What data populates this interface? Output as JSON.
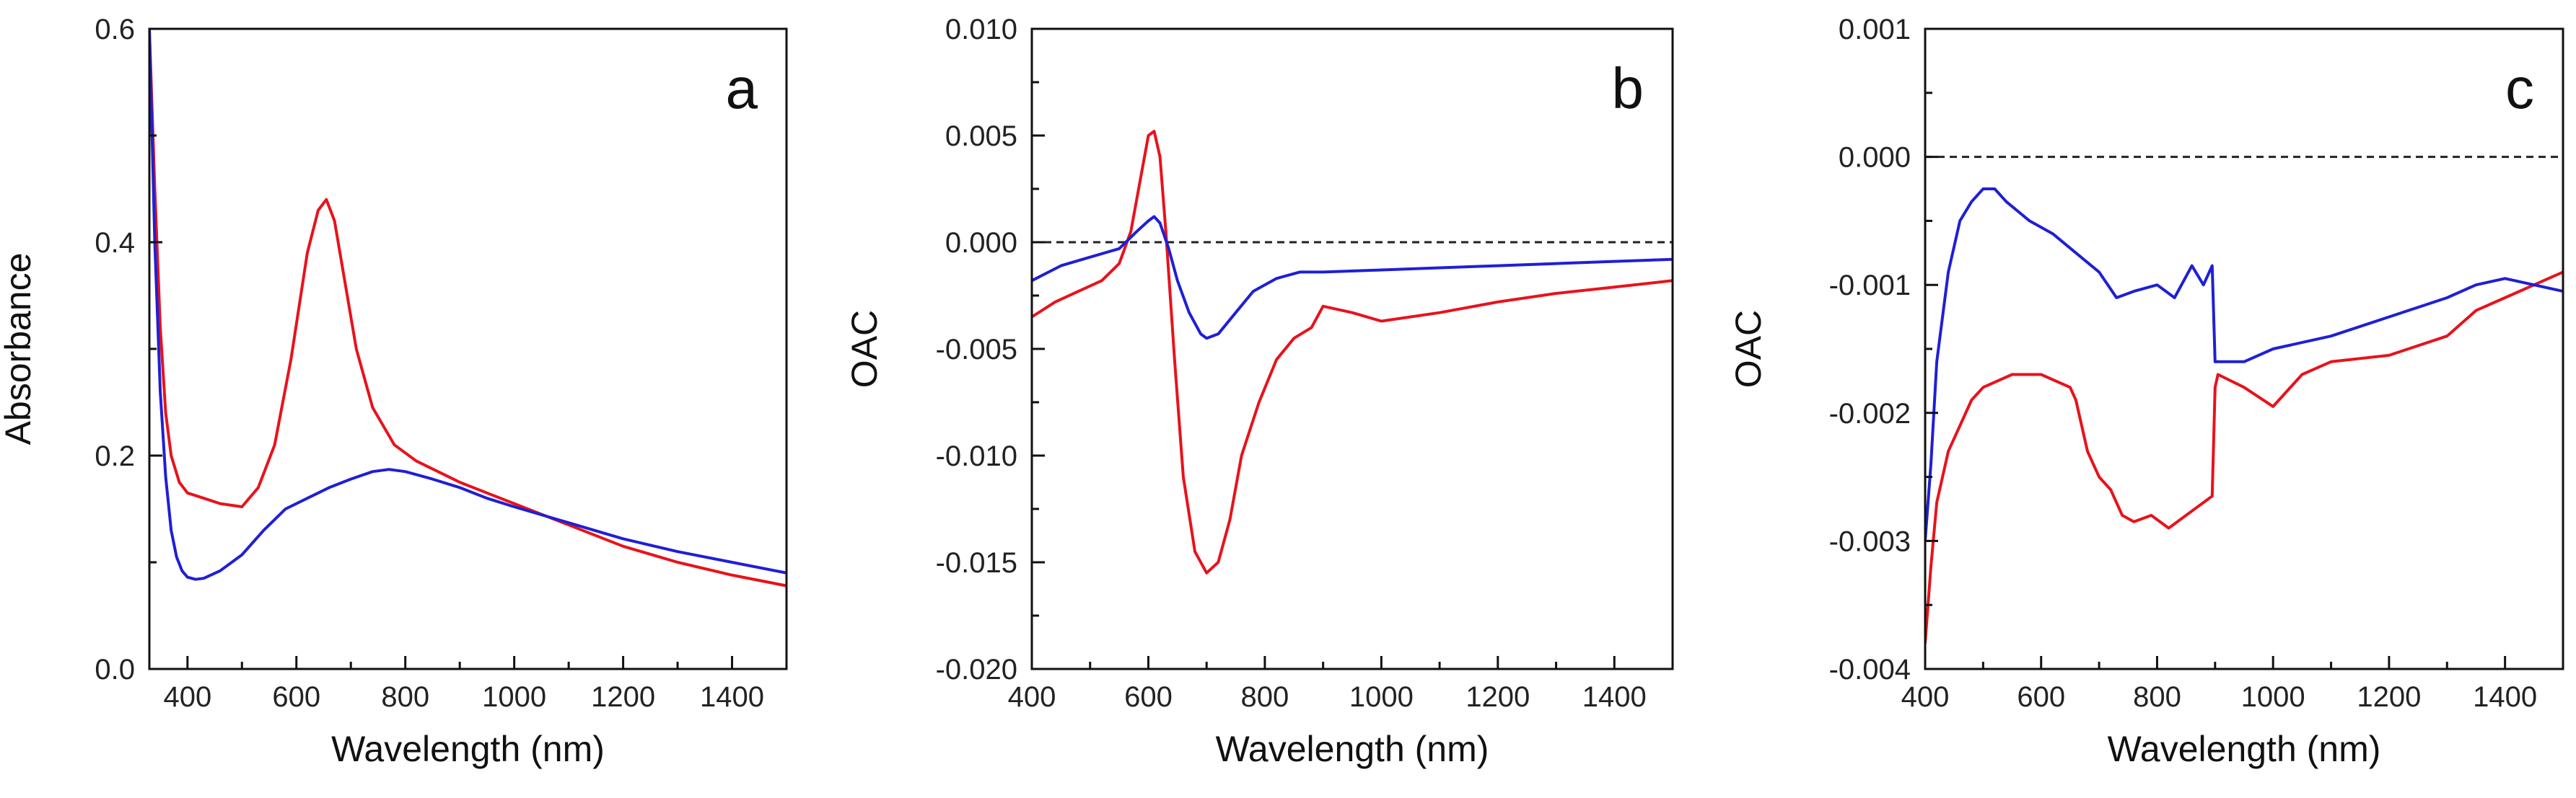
{
  "chart_data": [
    {
      "type": "line",
      "panel_label": "a",
      "xlabel": "Wavelength (nm)",
      "ylabel": "Absorbance",
      "xlim": [
        330,
        1500
      ],
      "ylim": [
        0,
        0.6
      ],
      "xticks": [
        400,
        600,
        800,
        1000,
        1200,
        1400
      ],
      "xtick_labels": [
        "400",
        "600",
        "800",
        "1000",
        "1200",
        "1400"
      ],
      "yticks": [
        0,
        0.2,
        0.4,
        0.6
      ],
      "ytick_labels": [
        "0.0",
        "0.2",
        "0.4",
        "0.6"
      ],
      "series": [
        {
          "name": "red",
          "color": "#e8121b",
          "x": [
            330,
            340,
            350,
            360,
            370,
            385,
            400,
            430,
            460,
            500,
            530,
            560,
            590,
            620,
            640,
            655,
            670,
            690,
            710,
            740,
            780,
            820,
            860,
            900,
            950,
            1000,
            1100,
            1200,
            1300,
            1400,
            1500
          ],
          "y": [
            0.6,
            0.45,
            0.32,
            0.24,
            0.2,
            0.175,
            0.165,
            0.16,
            0.155,
            0.152,
            0.17,
            0.21,
            0.29,
            0.39,
            0.43,
            0.44,
            0.42,
            0.36,
            0.3,
            0.245,
            0.21,
            0.195,
            0.185,
            0.175,
            0.165,
            0.155,
            0.135,
            0.115,
            0.1,
            0.088,
            0.078
          ]
        },
        {
          "name": "blue",
          "color": "#1f1fd6",
          "x": [
            330,
            340,
            350,
            360,
            370,
            380,
            390,
            400,
            415,
            430,
            460,
            500,
            540,
            580,
            620,
            660,
            700,
            740,
            770,
            800,
            850,
            900,
            950,
            1000,
            1100,
            1200,
            1300,
            1400,
            1500
          ],
          "y": [
            0.6,
            0.4,
            0.26,
            0.18,
            0.13,
            0.105,
            0.092,
            0.086,
            0.084,
            0.085,
            0.092,
            0.107,
            0.13,
            0.15,
            0.16,
            0.17,
            0.178,
            0.185,
            0.187,
            0.185,
            0.178,
            0.17,
            0.16,
            0.152,
            0.137,
            0.122,
            0.11,
            0.1,
            0.09
          ]
        }
      ]
    },
    {
      "type": "line",
      "panel_label": "b",
      "xlabel": "Wavelength (nm)",
      "ylabel": "OAC",
      "xlim": [
        400,
        1500
      ],
      "ylim": [
        -0.02,
        0.01
      ],
      "zero_line": true,
      "xticks": [
        400,
        600,
        800,
        1000,
        1200,
        1400
      ],
      "xtick_labels": [
        "400",
        "600",
        "800",
        "1000",
        "1200",
        "1400"
      ],
      "yticks": [
        -0.02,
        -0.015,
        -0.01,
        -0.005,
        0,
        0.005,
        0.01
      ],
      "ytick_labels": [
        "-0.020",
        "-0.015",
        "-0.010",
        "-0.005",
        "0.000",
        "0.005",
        "0.010"
      ],
      "series": [
        {
          "name": "red",
          "color": "#e8121b",
          "x": [
            400,
            440,
            480,
            520,
            550,
            570,
            590,
            600,
            610,
            620,
            630,
            645,
            660,
            680,
            700,
            720,
            740,
            760,
            790,
            820,
            850,
            880,
            900,
            950,
            1000,
            1100,
            1200,
            1300,
            1400,
            1500
          ],
          "y": [
            -0.0035,
            -0.0028,
            -0.0023,
            -0.0018,
            -0.001,
            0.0005,
            0.0035,
            0.005,
            0.0052,
            0.004,
            0.0005,
            -0.0055,
            -0.011,
            -0.0145,
            -0.0155,
            -0.015,
            -0.013,
            -0.01,
            -0.0075,
            -0.0055,
            -0.0045,
            -0.004,
            -0.003,
            -0.0033,
            -0.0037,
            -0.0033,
            -0.0028,
            -0.0024,
            -0.0021,
            -0.0018
          ]
        },
        {
          "name": "blue",
          "color": "#1f1fd6",
          "x": [
            400,
            450,
            500,
            550,
            580,
            600,
            610,
            620,
            635,
            650,
            670,
            690,
            700,
            720,
            750,
            780,
            820,
            860,
            900,
            1000,
            1100,
            1200,
            1300,
            1400,
            1500
          ],
          "y": [
            -0.0018,
            -0.0011,
            -0.0007,
            -0.0003,
            0.0005,
            0.001,
            0.0012,
            0.0009,
            -0.0003,
            -0.0018,
            -0.0033,
            -0.0043,
            -0.0045,
            -0.0043,
            -0.0033,
            -0.0023,
            -0.0017,
            -0.0014,
            -0.0014,
            -0.0013,
            -0.0012,
            -0.0011,
            -0.001,
            -0.0009,
            -0.0008
          ]
        }
      ]
    },
    {
      "type": "line",
      "panel_label": "c",
      "xlabel": "Wavelength (nm)",
      "ylabel": "OAC",
      "xlim": [
        400,
        1500
      ],
      "ylim": [
        -0.004,
        0.001
      ],
      "zero_line": true,
      "xticks": [
        400,
        600,
        800,
        1000,
        1200,
        1400
      ],
      "xtick_labels": [
        "400",
        "600",
        "800",
        "1000",
        "1200",
        "1400"
      ],
      "yticks": [
        -0.004,
        -0.003,
        -0.002,
        -0.001,
        0,
        0.001
      ],
      "ytick_labels": [
        "-0.004",
        "-0.003",
        "-0.002",
        "-0.001",
        "0.000",
        "0.001"
      ],
      "series": [
        {
          "name": "red",
          "color": "#e8121b",
          "x": [
            400,
            410,
            420,
            440,
            460,
            480,
            500,
            550,
            600,
            650,
            660,
            680,
            700,
            720,
            740,
            760,
            790,
            820,
            850,
            880,
            895,
            900,
            905,
            950,
            1000,
            1050,
            1100,
            1200,
            1300,
            1350,
            1400,
            1450,
            1500
          ],
          "y": [
            -0.0038,
            -0.0032,
            -0.0027,
            -0.0023,
            -0.0021,
            -0.0019,
            -0.0018,
            -0.0017,
            -0.0017,
            -0.0018,
            -0.0019,
            -0.0023,
            -0.0025,
            -0.0026,
            -0.0028,
            -0.00285,
            -0.0028,
            -0.0029,
            -0.0028,
            -0.0027,
            -0.00265,
            -0.0018,
            -0.0017,
            -0.0018,
            -0.00195,
            -0.0017,
            -0.0016,
            -0.00155,
            -0.0014,
            -0.0012,
            -0.0011,
            -0.001,
            -0.0009
          ]
        },
        {
          "name": "blue",
          "color": "#1f1fd6",
          "x": [
            400,
            410,
            420,
            440,
            460,
            480,
            500,
            520,
            540,
            580,
            620,
            660,
            700,
            730,
            760,
            800,
            830,
            860,
            880,
            895,
            900,
            905,
            950,
            1000,
            1100,
            1200,
            1300,
            1350,
            1400,
            1450,
            1500
          ],
          "y": [
            -0.003,
            -0.0024,
            -0.0016,
            -0.0009,
            -0.0005,
            -0.00035,
            -0.00025,
            -0.00025,
            -0.00035,
            -0.0005,
            -0.0006,
            -0.00075,
            -0.0009,
            -0.0011,
            -0.00105,
            -0.001,
            -0.0011,
            -0.00085,
            -0.001,
            -0.00085,
            -0.0016,
            -0.0016,
            -0.0016,
            -0.0015,
            -0.0014,
            -0.00125,
            -0.0011,
            -0.001,
            -0.00095,
            -0.001,
            -0.00105
          ]
        }
      ]
    }
  ]
}
